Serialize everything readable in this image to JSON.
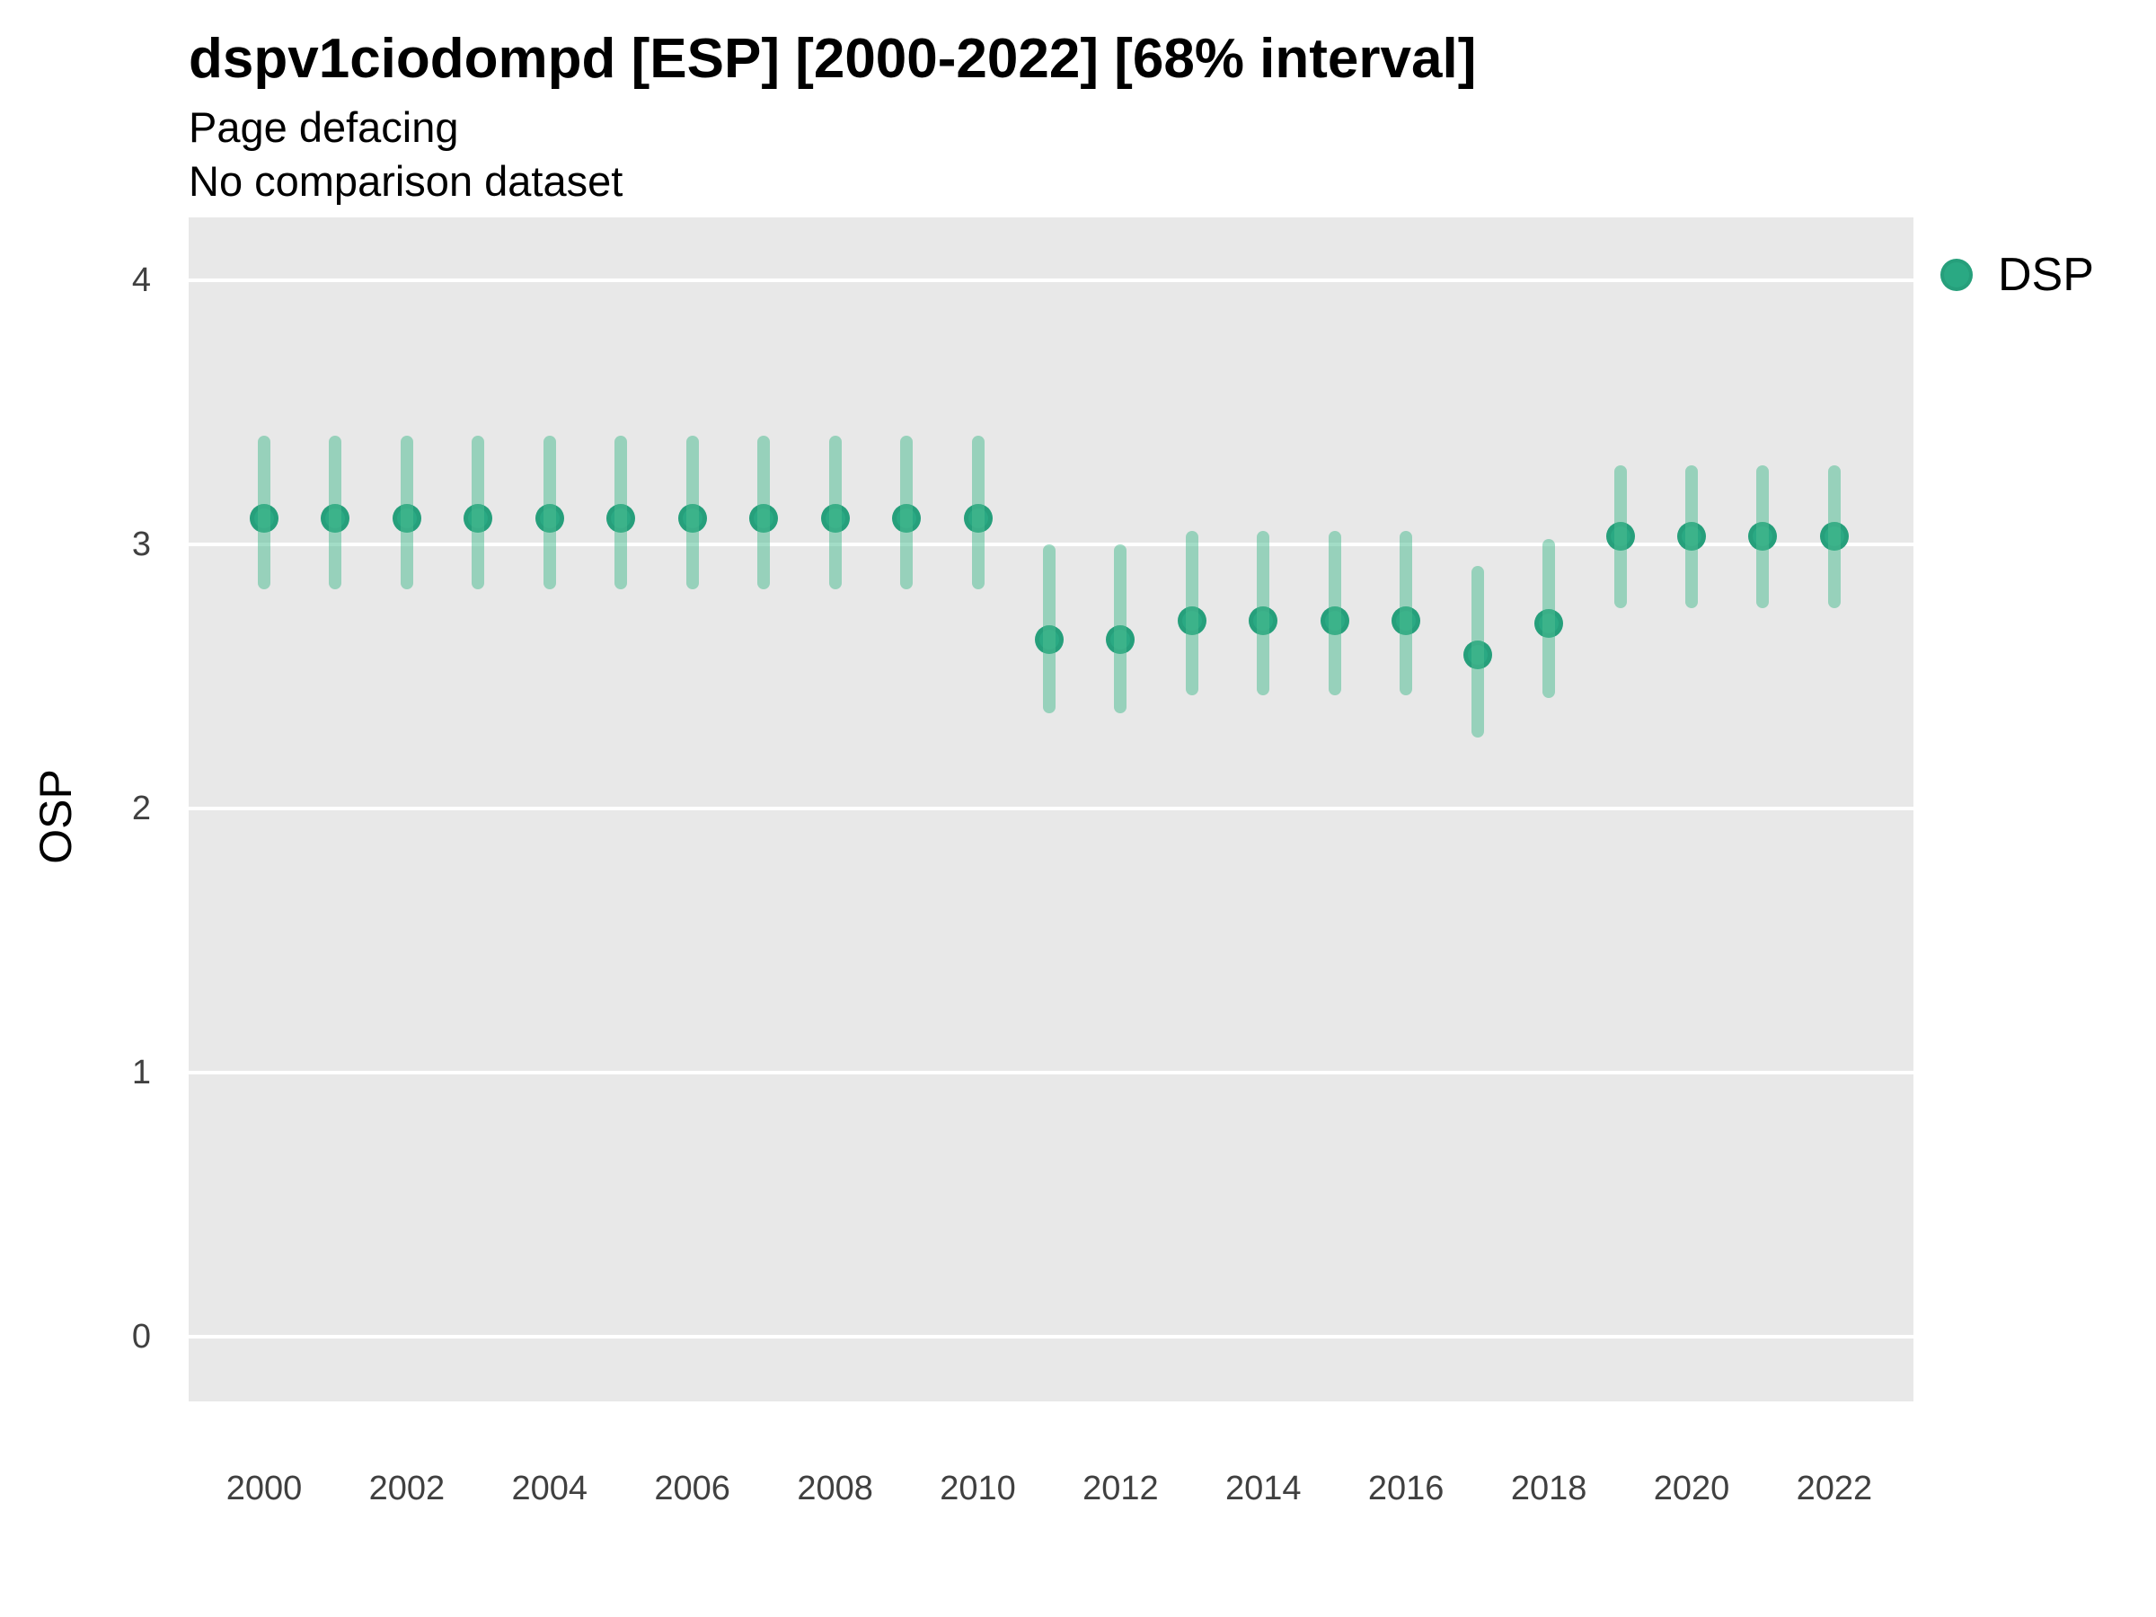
{
  "header": {
    "title": "dspv1ciodompd [ESP] [2000-2022] [68% interval]",
    "subtitle1": "Page defacing",
    "subtitle2": "No comparison dataset"
  },
  "legend": {
    "label": "DSP"
  },
  "axes": {
    "y_title": "OSP",
    "y_ticks": [
      4,
      3,
      2,
      1,
      0
    ],
    "x_ticks": [
      2000,
      2002,
      2004,
      2006,
      2008,
      2010,
      2012,
      2014,
      2016,
      2018,
      2020,
      2022
    ]
  },
  "colors": {
    "point_fill": "#2aa983",
    "interval_bar": "rgba(76,188,146,0.52)",
    "panel_background": "#e8e8e8",
    "gridline": "#ffffff"
  },
  "chart_data": {
    "type": "scatter",
    "subtype": "pointrange",
    "title": "dspv1ciodompd [ESP] [2000-2022] [68% interval]",
    "subtitle": "Page defacing",
    "note": "No comparison dataset",
    "interval": "68%",
    "xlabel": "",
    "ylabel": "OSP",
    "ylim": [
      -0.25,
      4.25
    ],
    "grid": "major-horizontal-only",
    "legend_position": "right",
    "series": [
      {
        "name": "DSP",
        "points": [
          {
            "year": 2000,
            "value": 3.1,
            "lo": 2.83,
            "hi": 3.41
          },
          {
            "year": 2001,
            "value": 3.1,
            "lo": 2.83,
            "hi": 3.41
          },
          {
            "year": 2002,
            "value": 3.1,
            "lo": 2.83,
            "hi": 3.41
          },
          {
            "year": 2003,
            "value": 3.1,
            "lo": 2.83,
            "hi": 3.41
          },
          {
            "year": 2004,
            "value": 3.1,
            "lo": 2.83,
            "hi": 3.41
          },
          {
            "year": 2005,
            "value": 3.1,
            "lo": 2.83,
            "hi": 3.41
          },
          {
            "year": 2006,
            "value": 3.1,
            "lo": 2.83,
            "hi": 3.41
          },
          {
            "year": 2007,
            "value": 3.1,
            "lo": 2.83,
            "hi": 3.41
          },
          {
            "year": 2008,
            "value": 3.1,
            "lo": 2.83,
            "hi": 3.41
          },
          {
            "year": 2009,
            "value": 3.1,
            "lo": 2.83,
            "hi": 3.41
          },
          {
            "year": 2010,
            "value": 3.1,
            "lo": 2.83,
            "hi": 3.41
          },
          {
            "year": 2011,
            "value": 2.64,
            "lo": 2.36,
            "hi": 3.0
          },
          {
            "year": 2012,
            "value": 2.64,
            "lo": 2.36,
            "hi": 3.0
          },
          {
            "year": 2013,
            "value": 2.71,
            "lo": 2.43,
            "hi": 3.05
          },
          {
            "year": 2014,
            "value": 2.71,
            "lo": 2.43,
            "hi": 3.05
          },
          {
            "year": 2015,
            "value": 2.71,
            "lo": 2.43,
            "hi": 3.05
          },
          {
            "year": 2016,
            "value": 2.71,
            "lo": 2.43,
            "hi": 3.05
          },
          {
            "year": 2017,
            "value": 2.58,
            "lo": 2.27,
            "hi": 2.92
          },
          {
            "year": 2018,
            "value": 2.7,
            "lo": 2.42,
            "hi": 3.02
          },
          {
            "year": 2019,
            "value": 3.03,
            "lo": 2.76,
            "hi": 3.3
          },
          {
            "year": 2020,
            "value": 3.03,
            "lo": 2.76,
            "hi": 3.3
          },
          {
            "year": 2021,
            "value": 3.03,
            "lo": 2.76,
            "hi": 3.3
          },
          {
            "year": 2022,
            "value": 3.03,
            "lo": 2.76,
            "hi": 3.3
          }
        ]
      }
    ]
  }
}
